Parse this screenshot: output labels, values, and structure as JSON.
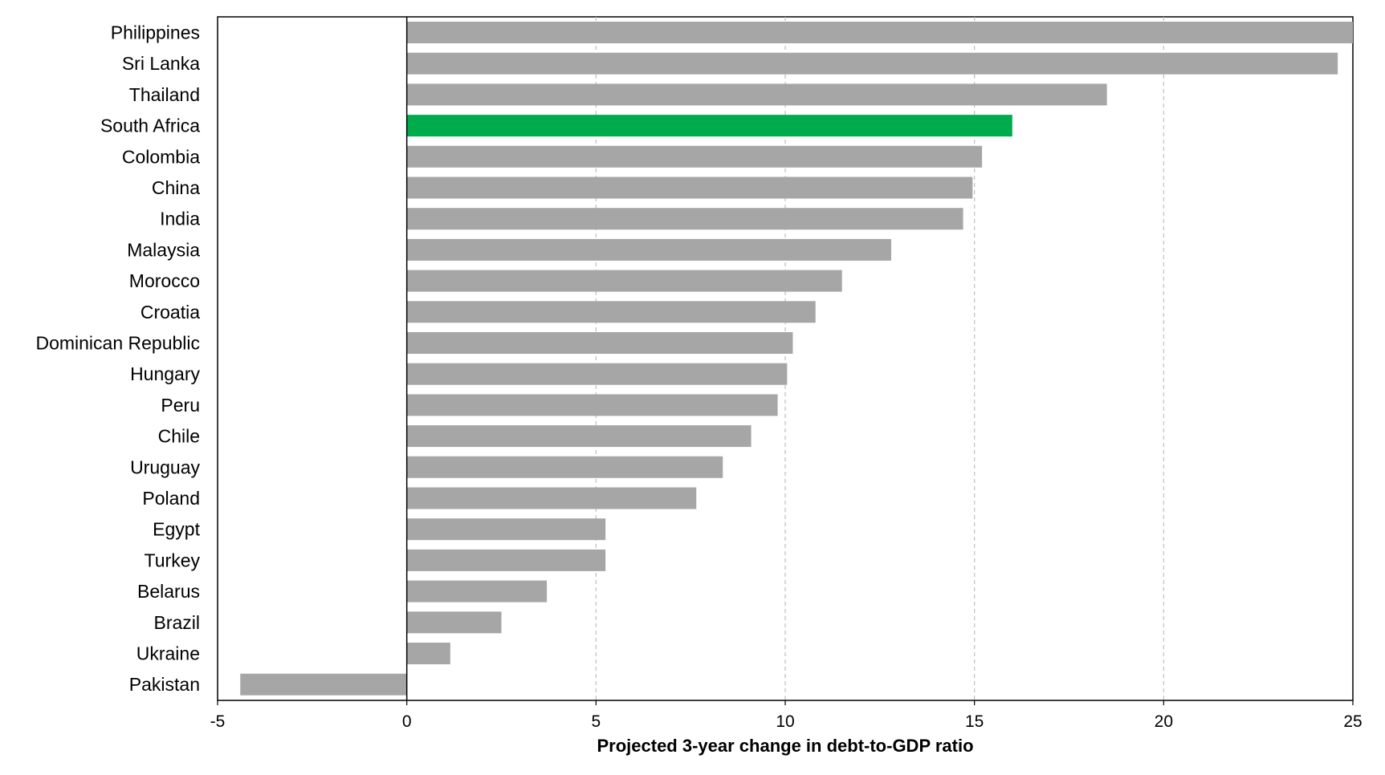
{
  "chart_data": {
    "type": "bar",
    "orientation": "horizontal",
    "title": "",
    "xlabel": "Projected 3-year change in debt-to-GDP ratio",
    "ylabel": "",
    "xlim": [
      -5,
      25
    ],
    "xticks": [
      -5,
      0,
      5,
      10,
      15,
      20,
      25
    ],
    "grid": "vertical dashed",
    "categories": [
      "Philippines",
      "Sri Lanka",
      "Thailand",
      "South Africa",
      "Colombia",
      "China",
      "India",
      "Malaysia",
      "Morocco",
      "Croatia",
      "Dominican Republic",
      "Hungary",
      "Peru",
      "Chile",
      "Uruguay",
      "Poland",
      "Egypt",
      "Turkey",
      "Belarus",
      "Brazil",
      "Ukraine",
      "Pakistan"
    ],
    "values": [
      25.0,
      24.6,
      18.5,
      16.0,
      15.2,
      14.95,
      14.7,
      12.8,
      11.5,
      10.8,
      10.2,
      10.05,
      9.8,
      9.1,
      8.35,
      7.65,
      5.25,
      5.25,
      3.7,
      2.5,
      1.15,
      -4.4
    ],
    "highlight": "South Africa",
    "colors": {
      "bar": "#a6a6a6",
      "highlight": "#00ab4e",
      "grid": "#bfbfbf",
      "axis": "#000000"
    }
  }
}
